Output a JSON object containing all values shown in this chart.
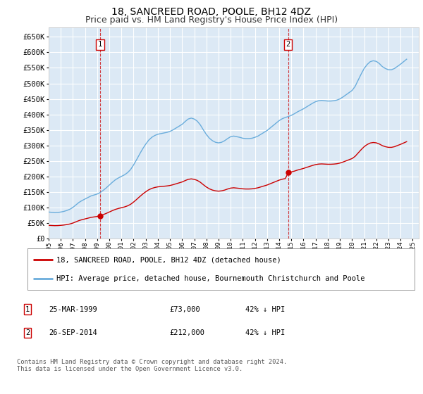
{
  "title": "18, SANCREED ROAD, POOLE, BH12 4DZ",
  "subtitle": "Price paid vs. HM Land Registry's House Price Index (HPI)",
  "ylabel_ticks": [
    "£0",
    "£50K",
    "£100K",
    "£150K",
    "£200K",
    "£250K",
    "£300K",
    "£350K",
    "£400K",
    "£450K",
    "£500K",
    "£550K",
    "£600K",
    "£650K"
  ],
  "ytick_values": [
    0,
    50000,
    100000,
    150000,
    200000,
    250000,
    300000,
    350000,
    400000,
    450000,
    500000,
    550000,
    600000,
    650000
  ],
  "ylim": [
    0,
    680000
  ],
  "xlim_start": 1995.0,
  "xlim_end": 2025.5,
  "xtick_years": [
    1995,
    1996,
    1997,
    1998,
    1999,
    2000,
    2001,
    2002,
    2003,
    2004,
    2005,
    2006,
    2007,
    2008,
    2009,
    2010,
    2011,
    2012,
    2013,
    2014,
    2015,
    2016,
    2017,
    2018,
    2019,
    2020,
    2021,
    2022,
    2023,
    2024,
    2025
  ],
  "plot_bg_color": "#dce9f5",
  "grid_color": "#ffffff",
  "line_color_red": "#cc0000",
  "line_color_blue": "#6aaddc",
  "sale1_x": 1999.23,
  "sale1_y": 73000,
  "sale1_label": "1",
  "sale1_date": "25-MAR-1999",
  "sale1_price": "£73,000",
  "sale1_hpi": "42% ↓ HPI",
  "sale2_x": 2014.73,
  "sale2_y": 212000,
  "sale2_label": "2",
  "sale2_date": "26-SEP-2014",
  "sale2_price": "£212,000",
  "sale2_hpi": "42% ↓ HPI",
  "legend_label_red": "18, SANCREED ROAD, POOLE, BH12 4DZ (detached house)",
  "legend_label_blue": "HPI: Average price, detached house, Bournemouth Christchurch and Poole",
  "footer_text": "Contains HM Land Registry data © Crown copyright and database right 2024.\nThis data is licensed under the Open Government Licence v3.0.",
  "hpi_x": [
    1995.0,
    1995.25,
    1995.5,
    1995.75,
    1996.0,
    1996.25,
    1996.5,
    1996.75,
    1997.0,
    1997.25,
    1997.5,
    1997.75,
    1998.0,
    1998.25,
    1998.5,
    1998.75,
    1999.0,
    1999.25,
    1999.5,
    1999.75,
    2000.0,
    2000.25,
    2000.5,
    2000.75,
    2001.0,
    2001.25,
    2001.5,
    2001.75,
    2002.0,
    2002.25,
    2002.5,
    2002.75,
    2003.0,
    2003.25,
    2003.5,
    2003.75,
    2004.0,
    2004.25,
    2004.5,
    2004.75,
    2005.0,
    2005.25,
    2005.5,
    2005.75,
    2006.0,
    2006.25,
    2006.5,
    2006.75,
    2007.0,
    2007.25,
    2007.5,
    2007.75,
    2008.0,
    2008.25,
    2008.5,
    2008.75,
    2009.0,
    2009.25,
    2009.5,
    2009.75,
    2010.0,
    2010.25,
    2010.5,
    2010.75,
    2011.0,
    2011.25,
    2011.5,
    2011.75,
    2012.0,
    2012.25,
    2012.5,
    2012.75,
    2013.0,
    2013.25,
    2013.5,
    2013.75,
    2014.0,
    2014.25,
    2014.5,
    2014.75,
    2015.0,
    2015.25,
    2015.5,
    2015.75,
    2016.0,
    2016.25,
    2016.5,
    2016.75,
    2017.0,
    2017.25,
    2017.5,
    2017.75,
    2018.0,
    2018.25,
    2018.5,
    2018.75,
    2019.0,
    2019.25,
    2019.5,
    2019.75,
    2020.0,
    2020.25,
    2020.5,
    2020.75,
    2021.0,
    2021.25,
    2021.5,
    2021.75,
    2022.0,
    2022.25,
    2022.5,
    2022.75,
    2023.0,
    2023.25,
    2023.5,
    2023.75,
    2024.0,
    2024.25,
    2024.5
  ],
  "hpi_y": [
    85000,
    84000,
    83000,
    83500,
    85000,
    87000,
    90000,
    94000,
    100000,
    108000,
    116000,
    122000,
    127000,
    132000,
    137000,
    140000,
    143000,
    148000,
    155000,
    163000,
    172000,
    181000,
    189000,
    195000,
    200000,
    205000,
    212000,
    222000,
    237000,
    254000,
    272000,
    289000,
    304000,
    317000,
    326000,
    332000,
    336000,
    338000,
    340000,
    342000,
    345000,
    350000,
    356000,
    362000,
    368000,
    377000,
    385000,
    388000,
    385000,
    378000,
    366000,
    350000,
    335000,
    323000,
    315000,
    310000,
    308000,
    310000,
    315000,
    322000,
    328000,
    330000,
    328000,
    326000,
    323000,
    322000,
    322000,
    323000,
    326000,
    330000,
    336000,
    342000,
    348000,
    356000,
    364000,
    372000,
    380000,
    386000,
    390000,
    393000,
    397000,
    402000,
    408000,
    413000,
    418000,
    424000,
    430000,
    436000,
    441000,
    444000,
    445000,
    444000,
    443000,
    443000,
    444000,
    446000,
    450000,
    456000,
    463000,
    470000,
    477000,
    490000,
    510000,
    530000,
    548000,
    561000,
    570000,
    573000,
    571000,
    564000,
    554000,
    548000,
    544000,
    544000,
    548000,
    555000,
    562000,
    570000,
    578000
  ],
  "title_fontsize": 10,
  "subtitle_fontsize": 9
}
